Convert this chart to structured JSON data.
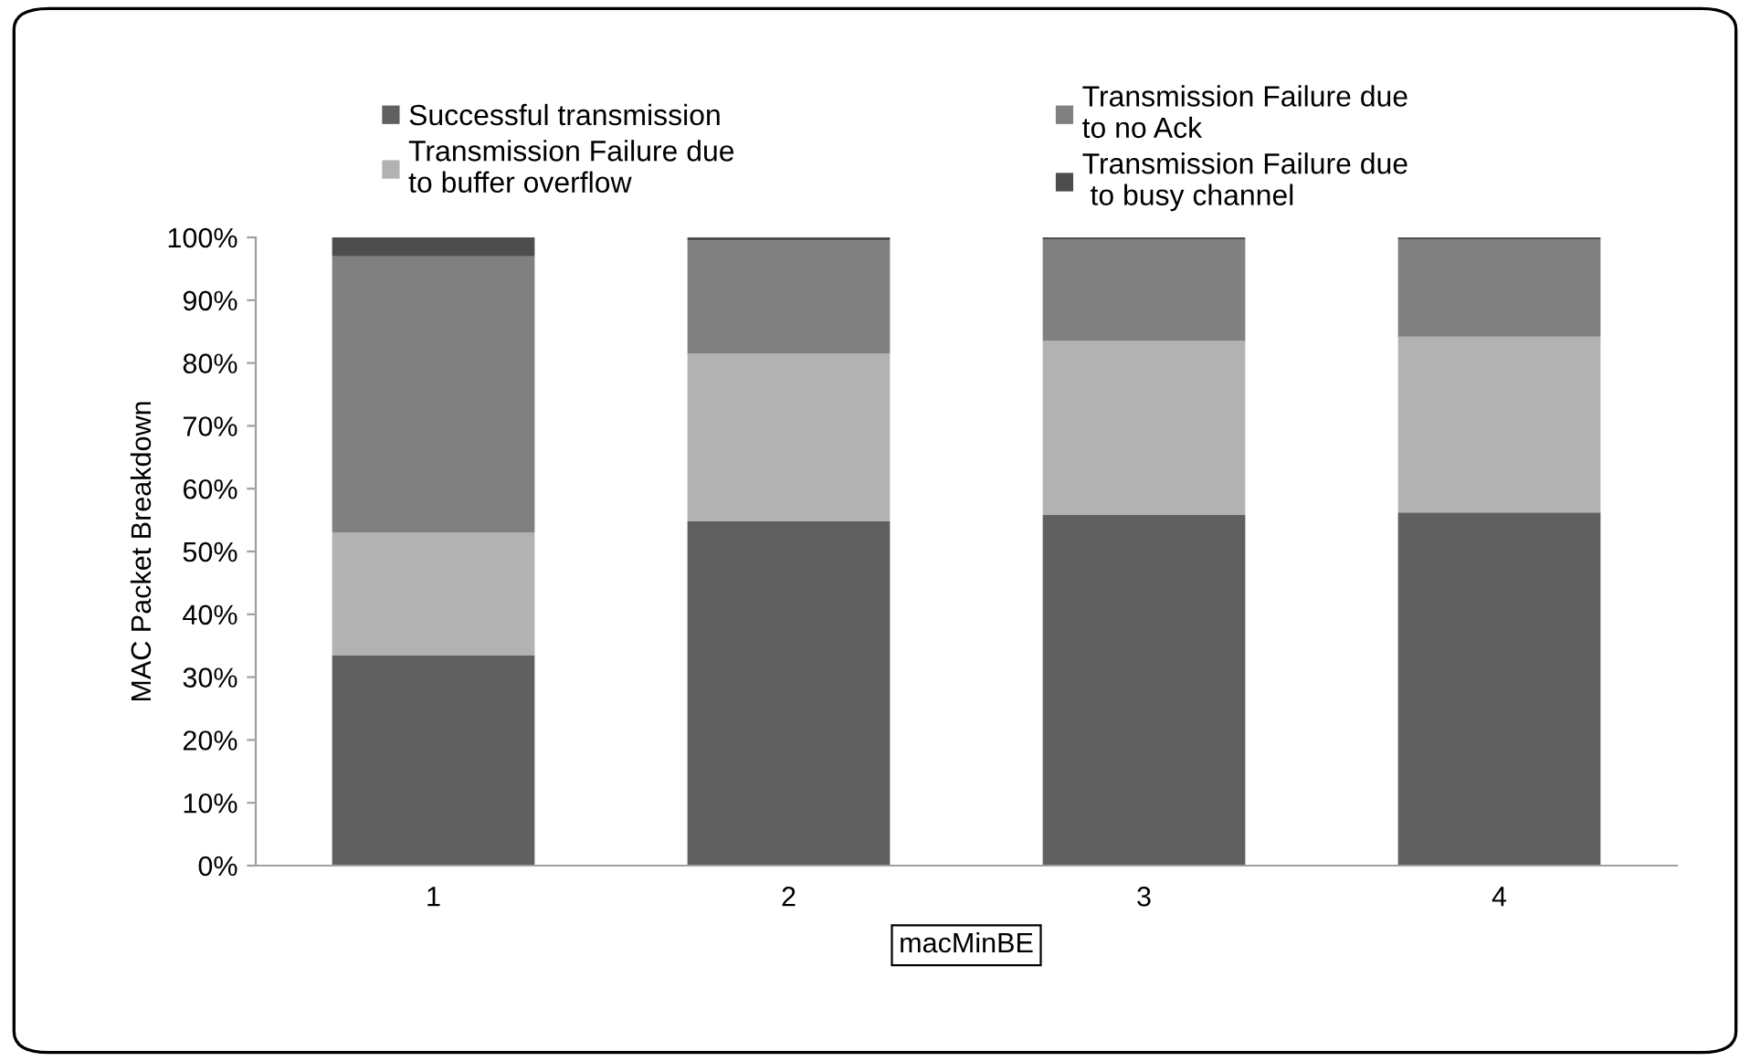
{
  "chart_data": {
    "type": "bar",
    "stacked": true,
    "xlabel": "macMinBE",
    "ylabel": "MAC Packet Breakdown",
    "categories": [
      "1",
      "2",
      "3",
      "4"
    ],
    "series": [
      {
        "name": "Successful transmission",
        "color": "#606060",
        "values": [
          33.5,
          54.8,
          55.8,
          56.2
        ]
      },
      {
        "name": "Transmission Failure due\nto buffer overflow",
        "color": "#b2b2b2",
        "values": [
          19.5,
          26.7,
          27.7,
          28.0
        ]
      },
      {
        "name": "Transmission Failure due\nto no Ack",
        "color": "#808080",
        "values": [
          44.0,
          18.0,
          16.2,
          15.5
        ]
      },
      {
        "name": "Transmission Failure due\n to busy channel",
        "color": "#4d4d4d",
        "values": [
          3.0,
          0.5,
          0.3,
          0.3
        ]
      }
    ],
    "ylim": [
      0,
      100
    ],
    "yticks": [
      {
        "value": 0,
        "label": "0%"
      },
      {
        "value": 10,
        "label": "10%"
      },
      {
        "value": 20,
        "label": "20%"
      },
      {
        "value": 30,
        "label": "30%"
      },
      {
        "value": 40,
        "label": "40%"
      },
      {
        "value": 50,
        "label": "50%"
      },
      {
        "value": 60,
        "label": "60%"
      },
      {
        "value": 70,
        "label": "70%"
      },
      {
        "value": 80,
        "label": "80%"
      },
      {
        "value": 90,
        "label": "90%"
      },
      {
        "value": 100,
        "label": "100%"
      }
    ],
    "grid": false,
    "legend": "top"
  }
}
